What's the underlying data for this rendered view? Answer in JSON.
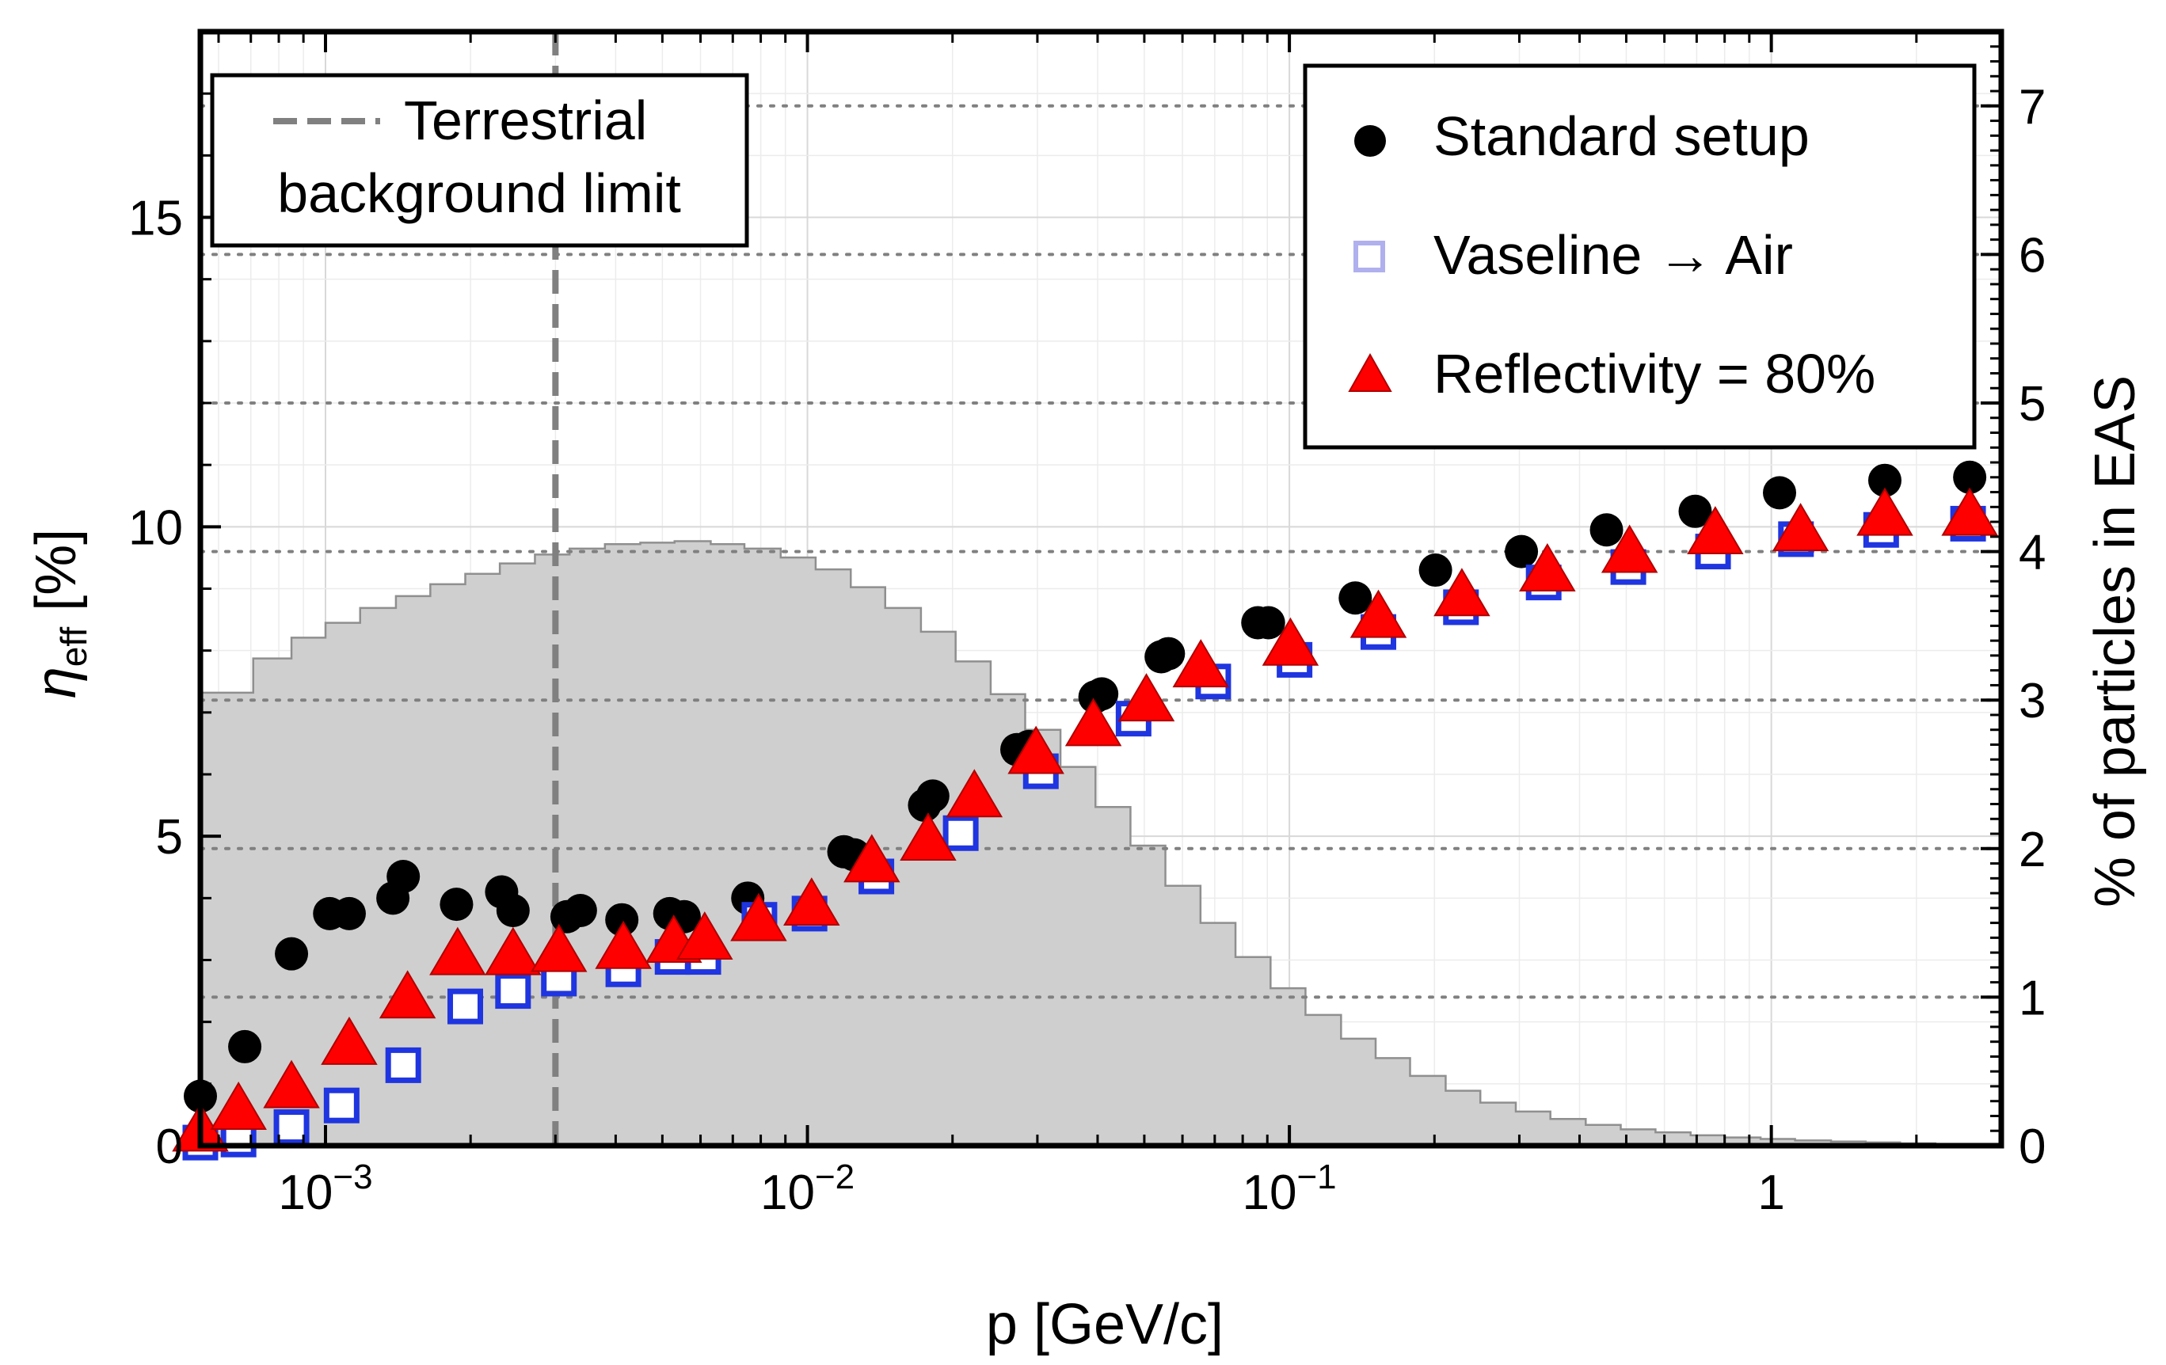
{
  "chart_data": {
    "type": "scatter",
    "xlabel": "p [GeV/c]",
    "ylabel_left": "η_eff [%]",
    "ylabel_left_main": "η",
    "ylabel_left_sub": "eff",
    "ylabel_left_unit": "[%]",
    "ylabel_right": "% of particles in EAS",
    "xscale": "log",
    "xlim": [
      0.00055,
      3.0
    ],
    "ylim_left": [
      0,
      18
    ],
    "ylim_right": [
      0,
      7.5
    ],
    "x_ticks": [
      {
        "value": 0.001,
        "base": "10",
        "exp": "−3"
      },
      {
        "value": 0.01,
        "base": "10",
        "exp": "−2"
      },
      {
        "value": 0.1,
        "base": "10",
        "exp": "−1"
      },
      {
        "value": 1,
        "base": "1",
        "exp": ""
      }
    ],
    "y_left_ticks": [
      {
        "value": 0,
        "label": "0"
      },
      {
        "value": 5,
        "label": "5"
      },
      {
        "value": 10,
        "label": "10"
      },
      {
        "value": 15,
        "label": "15"
      }
    ],
    "y_right_ticks": [
      {
        "value": 0,
        "label": "0"
      },
      {
        "value": 1,
        "label": "1"
      },
      {
        "value": 2,
        "label": "2"
      },
      {
        "value": 3,
        "label": "3"
      },
      {
        "value": 4,
        "label": "4"
      },
      {
        "value": 5,
        "label": "5"
      },
      {
        "value": 6,
        "label": "6"
      },
      {
        "value": 7,
        "label": "7"
      }
    ],
    "grid": true,
    "vline": {
      "x": 0.003,
      "label_line1": "Terrestrial",
      "label_line2": "background limit"
    },
    "histogram": {
      "name": "% of particles in EAS",
      "axis": "right",
      "edges": [
        0.00055,
        0.000708,
        0.00085,
        0.001,
        0.00118,
        0.0014,
        0.00165,
        0.00195,
        0.0023,
        0.00272,
        0.00321,
        0.0038,
        0.0045,
        0.0053,
        0.0063,
        0.0074,
        0.0088,
        0.0104,
        0.0123,
        0.0145,
        0.0172,
        0.0203,
        0.024,
        0.0283,
        0.0335,
        0.0396,
        0.0468,
        0.0553,
        0.0654,
        0.0773,
        0.0914,
        0.108,
        0.128,
        0.151,
        0.178,
        0.211,
        0.249,
        0.295,
        0.348,
        0.412,
        0.487,
        0.575,
        0.68,
        0.8,
        0.95,
        1.12,
        1.33,
        1.57,
        1.85,
        2.19,
        2.6,
        3.0
      ],
      "values": [
        3.05,
        3.28,
        3.42,
        3.52,
        3.62,
        3.7,
        3.78,
        3.85,
        3.92,
        3.98,
        4.02,
        4.05,
        4.06,
        4.07,
        4.05,
        4.02,
        3.96,
        3.88,
        3.76,
        3.62,
        3.46,
        3.26,
        3.04,
        2.8,
        2.55,
        2.28,
        2.02,
        1.75,
        1.5,
        1.27,
        1.06,
        0.88,
        0.72,
        0.59,
        0.47,
        0.37,
        0.29,
        0.23,
        0.18,
        0.14,
        0.11,
        0.09,
        0.07,
        0.055,
        0.045,
        0.035,
        0.028,
        0.022,
        0.016,
        0.01,
        0.006
      ]
    },
    "series": [
      {
        "name": "Standard setup",
        "marker": "circle",
        "color": "#000000",
        "x": [
          0.00055,
          0.00068,
          0.00085,
          0.00102,
          0.00112,
          0.00138,
          0.00145,
          0.00187,
          0.00232,
          0.00245,
          0.00317,
          0.00338,
          0.00412,
          0.00518,
          0.00555,
          0.00752,
          0.0119,
          0.0125,
          0.0175,
          0.0182,
          0.0272,
          0.0288,
          0.0395,
          0.0408,
          0.0542,
          0.0561,
          0.086,
          0.0905,
          0.137,
          0.201,
          0.303,
          0.455,
          0.695,
          1.04,
          1.72,
          2.58
        ],
        "y": [
          0.8,
          1.6,
          3.1,
          3.75,
          3.75,
          4.0,
          4.35,
          3.9,
          4.1,
          3.8,
          3.7,
          3.8,
          3.65,
          3.75,
          3.7,
          4.0,
          4.75,
          4.7,
          5.5,
          5.65,
          6.4,
          6.45,
          7.25,
          7.3,
          7.9,
          7.95,
          8.45,
          8.45,
          8.85,
          9.3,
          9.6,
          9.95,
          10.25,
          10.55,
          10.75,
          10.8
        ]
      },
      {
        "name": "Vaseline → Air",
        "marker": "square",
        "color": "#1f35e0",
        "legend_color": "#b0b0ee",
        "x": [
          0.00055,
          0.00066,
          0.00085,
          0.00108,
          0.00145,
          0.00195,
          0.00245,
          0.00305,
          0.00415,
          0.00525,
          0.00608,
          0.00795,
          0.0101,
          0.0139,
          0.0208,
          0.0305,
          0.0475,
          0.0695,
          0.1025,
          0.153,
          0.227,
          0.337,
          0.505,
          0.757,
          1.125,
          1.69,
          2.56
        ],
        "y": [
          0.05,
          0.1,
          0.3,
          0.65,
          1.3,
          2.25,
          2.5,
          2.7,
          2.85,
          3.05,
          3.05,
          3.65,
          3.75,
          4.35,
          5.05,
          6.05,
          6.9,
          7.5,
          7.85,
          8.3,
          8.7,
          9.1,
          9.35,
          9.6,
          9.8,
          9.95,
          10.05
        ]
      },
      {
        "name": "Reflectivity = 80%",
        "marker": "triangle",
        "color": "#ff0000",
        "x": [
          0.00055,
          0.00066,
          0.00085,
          0.00112,
          0.00148,
          0.00188,
          0.00245,
          0.00305,
          0.00415,
          0.00528,
          0.00612,
          0.00792,
          0.0102,
          0.0136,
          0.0178,
          0.0222,
          0.0298,
          0.0392,
          0.0505,
          0.0655,
          0.1005,
          0.153,
          0.228,
          0.343,
          0.508,
          0.765,
          1.15,
          1.72,
          2.58
        ],
        "y": [
          0.2,
          0.55,
          0.9,
          1.6,
          2.35,
          3.05,
          3.05,
          3.1,
          3.15,
          3.25,
          3.3,
          3.6,
          3.85,
          4.55,
          4.9,
          5.6,
          6.3,
          6.75,
          7.15,
          7.7,
          8.05,
          8.5,
          8.85,
          9.25,
          9.55,
          9.85,
          9.9,
          10.15,
          10.15
        ]
      }
    ]
  }
}
